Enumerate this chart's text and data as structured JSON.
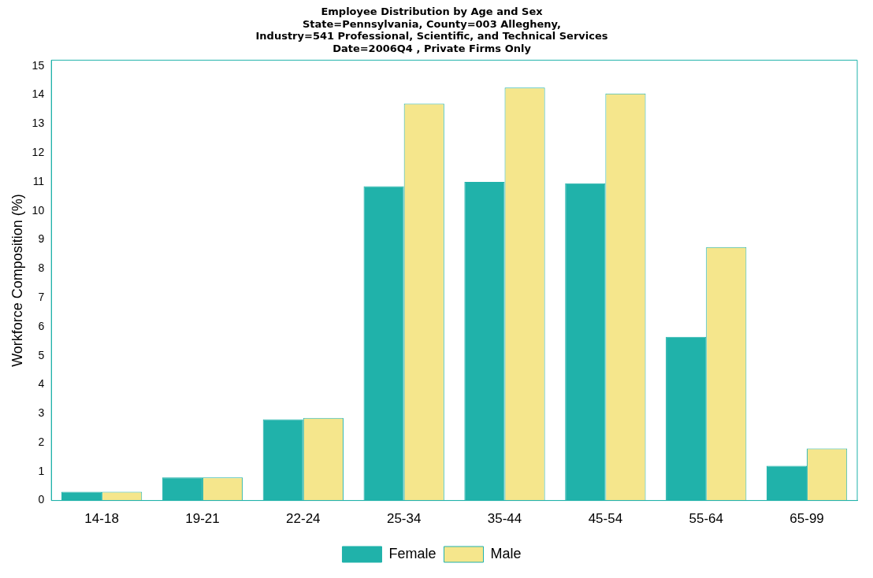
{
  "chart_data": {
    "type": "bar",
    "title": "Employee Distribution by Age and Sex",
    "subtitle": "State=Pennsylvania, County=003 Allegheny,\nIndustry=541 Professional, Scientific, and Technical Services\nDate=2006Q4 , Private Firms Only",
    "ylabel": "Workforce Composition (%)",
    "categories": [
      "14-18",
      "19-21",
      "22-24",
      "25-34",
      "35-44",
      "45-54",
      "55-64",
      "65-99"
    ],
    "series": [
      {
        "name": "Female",
        "color": "#20b2aa",
        "values": [
          0.3,
          0.8,
          2.8,
          10.85,
          11.0,
          10.95,
          5.65,
          1.2
        ]
      },
      {
        "name": "Male",
        "color": "#f5e68c",
        "values": [
          0.3,
          0.8,
          2.85,
          13.7,
          14.25,
          14.05,
          8.75,
          1.8
        ]
      }
    ],
    "ylim": [
      0,
      15.2
    ],
    "yticks": [
      0,
      1,
      2,
      3,
      4,
      5,
      6,
      7,
      8,
      9,
      10,
      11,
      12,
      13,
      14,
      15
    ],
    "grid": false,
    "legend": "bottom"
  }
}
